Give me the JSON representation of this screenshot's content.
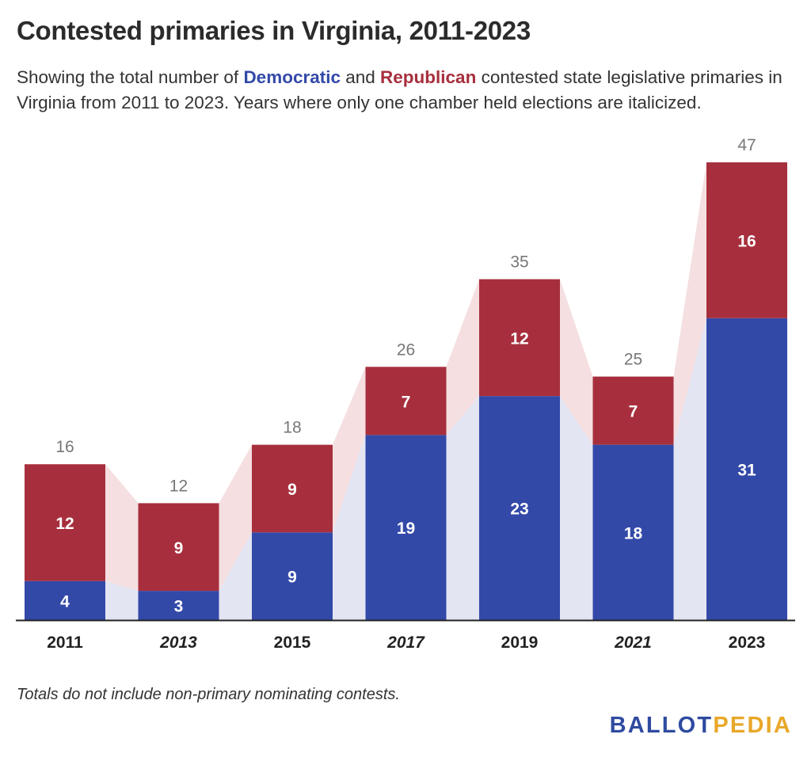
{
  "header": {
    "title": "Contested primaries in Virginia, 2011-2023",
    "subtitle_pre": "Showing the total number of ",
    "subtitle_dem": "Democratic",
    "subtitle_mid": " and ",
    "subtitle_rep": "Republican",
    "subtitle_post": " contested state legislative primaries in Virginia from 2011 to 2023. Years where only one chamber held elections are italicized."
  },
  "footnote": "Totals do not include non-primary nominating contests.",
  "logo": {
    "part1": "BALLOT",
    "part2": "PEDIA"
  },
  "colors": {
    "democratic": "#3349a8",
    "republican": "#a72f3d",
    "dem_band": "#e3e5f3",
    "rep_band": "#f5dfe1",
    "total_label": "#777777",
    "axis": "#222222"
  },
  "chart_data": {
    "type": "bar",
    "stacked": true,
    "categories": [
      "2011",
      "2013",
      "2015",
      "2017",
      "2019",
      "2021",
      "2023"
    ],
    "italic_categories": [
      "2013",
      "2017",
      "2021"
    ],
    "series": [
      {
        "name": "Democratic",
        "values": [
          4,
          3,
          9,
          19,
          23,
          18,
          31
        ]
      },
      {
        "name": "Republican",
        "values": [
          12,
          9,
          9,
          7,
          12,
          7,
          16
        ]
      }
    ],
    "totals": [
      16,
      12,
      18,
      26,
      35,
      25,
      47
    ],
    "ylim": [
      0,
      47
    ],
    "grid": false,
    "legend": "none"
  }
}
